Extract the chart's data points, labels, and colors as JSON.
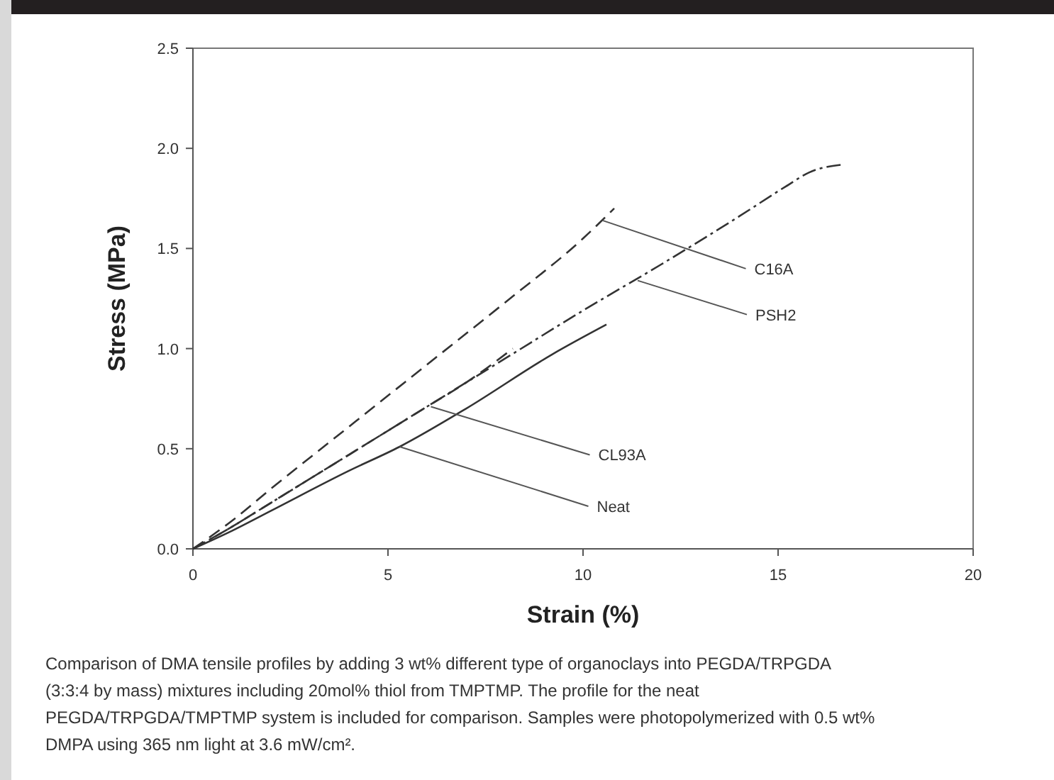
{
  "chart_data": {
    "type": "line",
    "xlabel": "Strain (%)",
    "ylabel": "Stress (MPa)",
    "xlim": [
      0,
      20
    ],
    "xticks": [
      0,
      5,
      10,
      15,
      20
    ],
    "ylim": [
      0,
      2.5
    ],
    "yticks": [
      {
        "value": 0,
        "label": "0.0"
      },
      {
        "value": 0.5,
        "label": "0.5"
      },
      {
        "value": 1,
        "label": "1.0"
      },
      {
        "value": 1.5,
        "label": "1.5"
      },
      {
        "value": 2,
        "label": "2.0"
      },
      {
        "value": 2.5,
        "label": "2.5"
      }
    ],
    "grid": false,
    "legend": false,
    "marker": "none",
    "series": [
      {
        "color": "#333333",
        "line_style": "dashed",
        "x": [
          0,
          1,
          2,
          4,
          6,
          8,
          10,
          10.8
        ],
        "values": [
          0,
          0.14,
          0.3,
          0.61,
          0.92,
          1.23,
          1.55,
          1.7
        ]
      },
      {
        "color": "#333333",
        "line_style": "dotted",
        "x": [
          0,
          1,
          2,
          4,
          6,
          8,
          10,
          12,
          14,
          15.2,
          15.8,
          16.7
        ],
        "values": [
          0,
          0.11,
          0.23,
          0.47,
          0.71,
          0.95,
          1.19,
          1.42,
          1.66,
          1.81,
          1.88,
          1.92
        ]
      },
      {
        "color": "#333333",
        "line_style": "dashed",
        "x": [
          0,
          1,
          2,
          4,
          6,
          7,
          8.2
        ],
        "values": [
          0,
          0.11,
          0.23,
          0.47,
          0.71,
          0.83,
          1.0
        ]
      },
      {
        "color": "#333333",
        "line_style": "solid",
        "x": [
          0,
          1,
          2,
          4,
          5.3,
          7,
          9.2,
          10.6
        ],
        "values": [
          0,
          0.09,
          0.19,
          0.39,
          0.51,
          0.7,
          0.97,
          1.12
        ]
      }
    ],
    "annotations": [
      {
        "text": "C16A",
        "x": 10.5,
        "y": 1.64
      },
      {
        "text": "PSH2",
        "x": 11.4,
        "y": 1.34
      },
      {
        "text": "CL93A",
        "x": 6.1,
        "y": 0.71
      },
      {
        "text": "Neat",
        "x": 5.3,
        "y": 0.51
      },
      "Comparison of DMA tensile profiles by adding 3 wt% different type of organoclays into PEGDA/TRPGDA (3:3:4 by mass) mixtures including 20mol% thiol from TMPTMP. The profile for the neat PEGDA/TRPGDA/TMPTMP system is included for comparison. Samples were photopolymerized with 0.5 wt% DMPA using 365 nm light at 3.6 mW/cm²."
    ]
  }
}
